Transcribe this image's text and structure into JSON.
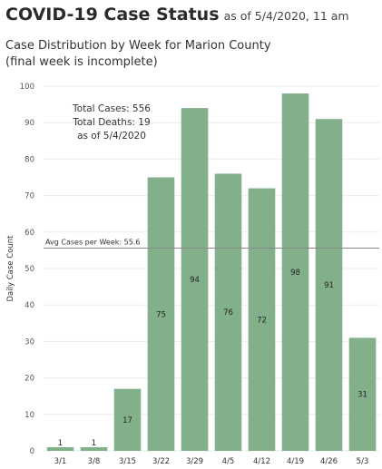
{
  "header": {
    "title": "COVID-19 Case Status",
    "as_of": "as of 5/4/2020, 11 am"
  },
  "subtitle": {
    "line1": "Case Distribution by Week for Marion County",
    "line2": "(final week is incomplete)"
  },
  "chart_data": {
    "type": "bar",
    "categories": [
      "3/1",
      "3/8",
      "3/15",
      "3/22",
      "3/29",
      "4/5",
      "4/12",
      "4/19",
      "4/26",
      "5/3"
    ],
    "values": [
      1,
      1,
      17,
      75,
      94,
      76,
      72,
      98,
      91,
      31
    ],
    "ylabel": "Daily Case Count",
    "xlabel": "",
    "ylim": [
      0,
      100
    ],
    "yticks": [
      0,
      10,
      20,
      30,
      40,
      50,
      60,
      70,
      80,
      90,
      100
    ],
    "grid": "horizontal",
    "bar_color": "#82b08a",
    "reference_line": {
      "label": "Avg Cases per Week: 55.6",
      "value": 55.6,
      "color": "#888888"
    },
    "annotation": [
      "Total Cases: 556",
      "Total Deaths: 19",
      "as of 5/4/2020"
    ]
  }
}
